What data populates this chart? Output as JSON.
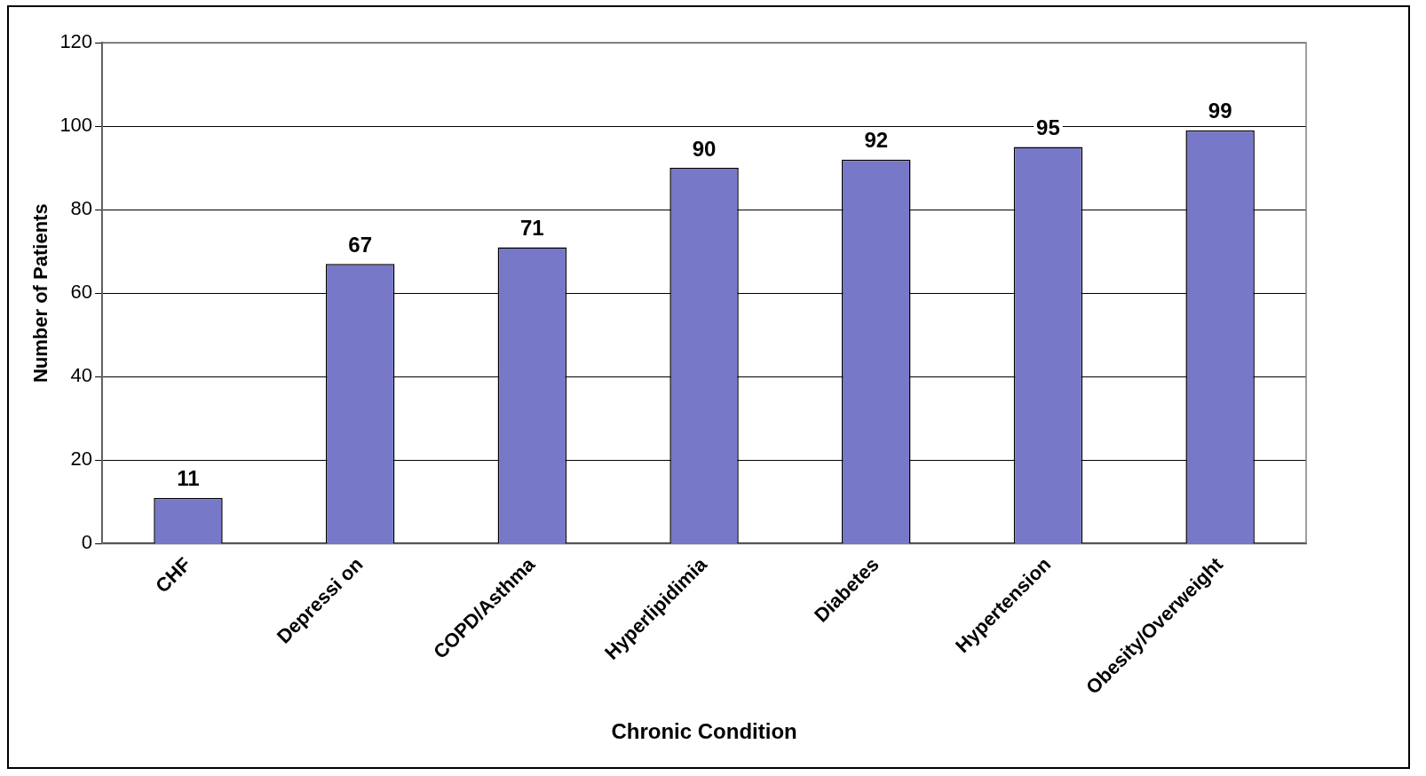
{
  "chart_data": {
    "type": "bar",
    "xlabel": "Chronic Condition",
    "ylabel": "Number of Patients",
    "categories": [
      "CHF",
      "Depressi on",
      "COPD/Asthma",
      "Hyperlipidimia",
      "Diabetes",
      "Hypertension",
      "Obesity/Overweight"
    ],
    "values": [
      11,
      67,
      71,
      90,
      92,
      95,
      99
    ],
    "color": "#7878c8",
    "ylim": [
      0,
      120
    ],
    "yticks": [
      0,
      20,
      40,
      60,
      80,
      100,
      120
    ],
    "grid": "y",
    "data_labels": true,
    "legend": false
  }
}
